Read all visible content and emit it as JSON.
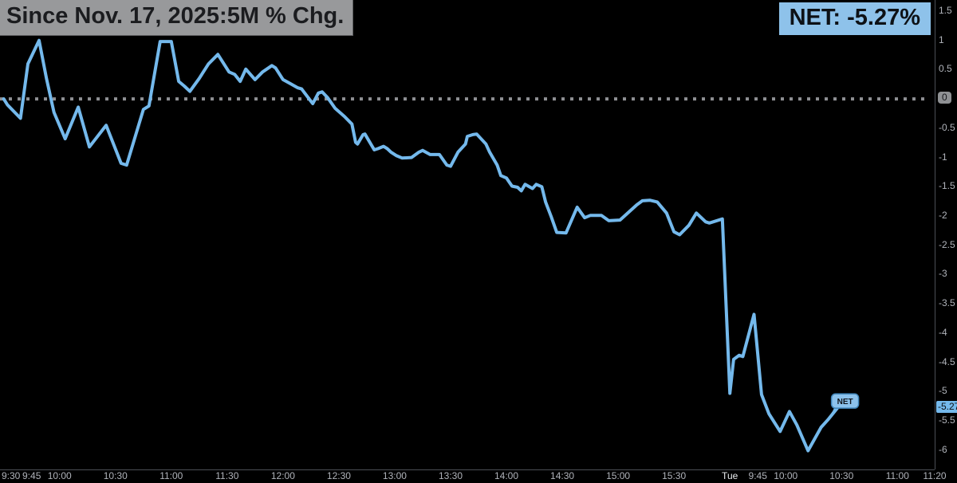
{
  "header": {
    "title": "Since Nov. 17, 2025:5M % Chg.",
    "net_summary": "NET: -5.27%"
  },
  "colors": {
    "background": "#000000",
    "line": "#74b9ec",
    "zero_baseline": "#8f9094",
    "axis_border": "#4b4f55",
    "axis_text": "#b0b3ba",
    "day_label_text": "#e9ebee",
    "title_bg": "#98999b",
    "title_text": "#1b1c1f",
    "net_badge_bg": "#8ec2ea",
    "zero_badge_bg": "#8f9194",
    "last_badge_bg": "#74b9ec",
    "net_tag_bg": "#8cc2ec",
    "net_tag_border": "#3f84b8"
  },
  "chart_data": {
    "type": "line",
    "title": "Since Nov. 17, 2025:5M % Chg.",
    "interval": "5M",
    "unit": "% change since Nov. 17, 2025 close",
    "series_name": "NET",
    "net_change_pct": -5.27,
    "grid": "off",
    "legend": "none",
    "ylim": [
      -6.33,
      1.69
    ],
    "xlim_minutes": [
      -2,
      500
    ],
    "x_minutes_note": "minutes of trading time since Mon 09:30; 390 = Tue 09:30 (overnight gap collapsed)",
    "baseline": {
      "value": 0,
      "label": "0",
      "style": "dotted"
    },
    "last_badge": {
      "v": -5.27,
      "label": "-5.27"
    },
    "net_tag": {
      "label": "NET"
    },
    "y_ticks": [
      {
        "v": 1.5,
        "label": "1.5"
      },
      {
        "v": 1,
        "label": "1"
      },
      {
        "v": 0.5,
        "label": "0.5"
      },
      {
        "v": 0,
        "label": "0",
        "badge": true
      },
      {
        "v": -0.5,
        "label": "-0.5"
      },
      {
        "v": -1,
        "label": "-1"
      },
      {
        "v": -1.5,
        "label": "-1.5"
      },
      {
        "v": -2,
        "label": "-2"
      },
      {
        "v": -2.5,
        "label": "-2.5"
      },
      {
        "v": -3,
        "label": "-3"
      },
      {
        "v": -3.5,
        "label": "-3.5"
      },
      {
        "v": -4,
        "label": "-4"
      },
      {
        "v": -4.5,
        "label": "-4.5"
      },
      {
        "v": -5,
        "label": "-5"
      },
      {
        "v": -5.5,
        "label": "-5.5"
      },
      {
        "v": -6,
        "label": "-6"
      }
    ],
    "x_ticks": [
      {
        "m": 0,
        "label": "9:30"
      },
      {
        "m": 15,
        "label": "9:45"
      },
      {
        "m": 30,
        "label": "10:00"
      },
      {
        "m": 60,
        "label": "10:30"
      },
      {
        "m": 90,
        "label": "11:00"
      },
      {
        "m": 120,
        "label": "11:30"
      },
      {
        "m": 150,
        "label": "12:00"
      },
      {
        "m": 180,
        "label": "12:30"
      },
      {
        "m": 210,
        "label": "13:00"
      },
      {
        "m": 240,
        "label": "13:30"
      },
      {
        "m": 270,
        "label": "14:00"
      },
      {
        "m": 300,
        "label": "14:30"
      },
      {
        "m": 330,
        "label": "15:00"
      },
      {
        "m": 360,
        "label": "15:30"
      },
      {
        "m": 390,
        "label": "Tue",
        "day_start": true
      },
      {
        "m": 405,
        "label": "9:45"
      },
      {
        "m": 420,
        "label": "10:00"
      },
      {
        "m": 450,
        "label": "10:30"
      },
      {
        "m": 480,
        "label": "11:00"
      },
      {
        "m": 500,
        "label": "11:20"
      }
    ],
    "series": [
      {
        "name": "NET",
        "color": "#74b9ec",
        "points": [
          [
            0,
            0.0
          ],
          [
            2,
            -0.1
          ],
          [
            9,
            -0.33
          ],
          [
            13,
            0.6
          ],
          [
            19,
            1.0
          ],
          [
            23,
            0.34
          ],
          [
            27,
            -0.23
          ],
          [
            33,
            -0.68
          ],
          [
            40,
            -0.14
          ],
          [
            46,
            -0.82
          ],
          [
            55,
            -0.45
          ],
          [
            63,
            -1.1
          ],
          [
            66,
            -1.13
          ],
          [
            75,
            -0.18
          ],
          [
            78,
            -0.12
          ],
          [
            84,
            0.98
          ],
          [
            90,
            0.98
          ],
          [
            94,
            0.3
          ],
          [
            97,
            0.22
          ],
          [
            100,
            0.13
          ],
          [
            105,
            0.35
          ],
          [
            110,
            0.6
          ],
          [
            115,
            0.76
          ],
          [
            121,
            0.46
          ],
          [
            124,
            0.42
          ],
          [
            127,
            0.3
          ],
          [
            130,
            0.51
          ],
          [
            135,
            0.33
          ],
          [
            139,
            0.46
          ],
          [
            144,
            0.57
          ],
          [
            146,
            0.53
          ],
          [
            150,
            0.33
          ],
          [
            154,
            0.26
          ],
          [
            158,
            0.19
          ],
          [
            160,
            0.17
          ],
          [
            164,
            0.0
          ],
          [
            166,
            -0.08
          ],
          [
            169,
            0.1
          ],
          [
            171,
            0.12
          ],
          [
            174,
            0.02
          ],
          [
            178,
            -0.16
          ],
          [
            183,
            -0.3
          ],
          [
            187,
            -0.43
          ],
          [
            189,
            -0.74
          ],
          [
            190,
            -0.77
          ],
          [
            193,
            -0.61
          ],
          [
            194,
            -0.6
          ],
          [
            199,
            -0.87
          ],
          [
            201,
            -0.85
          ],
          [
            204,
            -0.81
          ],
          [
            206,
            -0.85
          ],
          [
            208,
            -0.91
          ],
          [
            211,
            -0.97
          ],
          [
            214,
            -1.01
          ],
          [
            219,
            -1.0
          ],
          [
            223,
            -0.91
          ],
          [
            225,
            -0.88
          ],
          [
            229,
            -0.95
          ],
          [
            234,
            -0.95
          ],
          [
            238,
            -1.13
          ],
          [
            240,
            -1.15
          ],
          [
            244,
            -0.91
          ],
          [
            248,
            -0.77
          ],
          [
            249,
            -0.64
          ],
          [
            252,
            -0.61
          ],
          [
            254,
            -0.6
          ],
          [
            259,
            -0.77
          ],
          [
            261,
            -0.91
          ],
          [
            265,
            -1.13
          ],
          [
            267,
            -1.31
          ],
          [
            270,
            -1.35
          ],
          [
            273,
            -1.49
          ],
          [
            276,
            -1.51
          ],
          [
            278,
            -1.57
          ],
          [
            280,
            -1.46
          ],
          [
            284,
            -1.53
          ],
          [
            286,
            -1.46
          ],
          [
            289,
            -1.5
          ],
          [
            291,
            -1.76
          ],
          [
            294,
            -2.01
          ],
          [
            297,
            -2.28
          ],
          [
            302,
            -2.29
          ],
          [
            308,
            -1.85
          ],
          [
            312,
            -2.03
          ],
          [
            315,
            -1.99
          ],
          [
            321,
            -1.99
          ],
          [
            325,
            -2.08
          ],
          [
            331,
            -2.07
          ],
          [
            340,
            -1.81
          ],
          [
            343,
            -1.74
          ],
          [
            347,
            -1.73
          ],
          [
            351,
            -1.76
          ],
          [
            356,
            -1.95
          ],
          [
            360,
            -2.27
          ],
          [
            363,
            -2.32
          ],
          [
            368,
            -2.16
          ],
          [
            372,
            -1.95
          ],
          [
            377,
            -2.1
          ],
          [
            379,
            -2.12
          ],
          [
            386,
            -2.05
          ],
          [
            390,
            -5.03
          ],
          [
            392,
            -4.45
          ],
          [
            395,
            -4.38
          ],
          [
            397,
            -4.4
          ],
          [
            403,
            -3.68
          ],
          [
            407,
            -5.05
          ],
          [
            411,
            -5.38
          ],
          [
            417,
            -5.68
          ],
          [
            422,
            -5.34
          ],
          [
            426,
            -5.57
          ],
          [
            432,
            -6.01
          ],
          [
            439,
            -5.61
          ],
          [
            443,
            -5.47
          ],
          [
            448,
            -5.27
          ]
        ]
      }
    ]
  }
}
